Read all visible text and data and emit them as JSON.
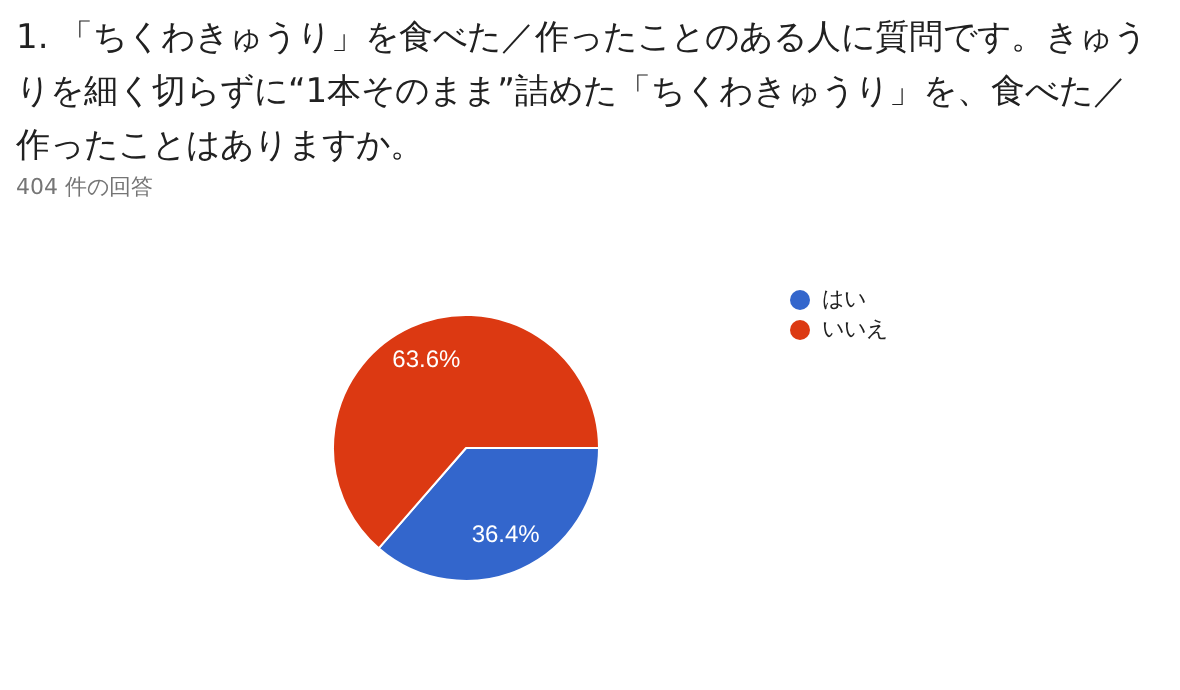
{
  "chart_data": {
    "type": "pie",
    "title": "1. 「ちくわきゅうり」を食べた／作ったことのある人に質問です。きゅうりを細く切らずに“1本そのまま”詰めた「ちくわきゅうり」を、食べた／作ったことはありますか。",
    "subtitle": "404 件の回答",
    "categories": [
      "はい",
      "いいえ"
    ],
    "values": [
      36.4,
      63.6
    ],
    "colors": [
      "#3366cc",
      "#dc3912"
    ],
    "value_labels": [
      "36.4%",
      "63.6%"
    ],
    "legend": "right"
  }
}
